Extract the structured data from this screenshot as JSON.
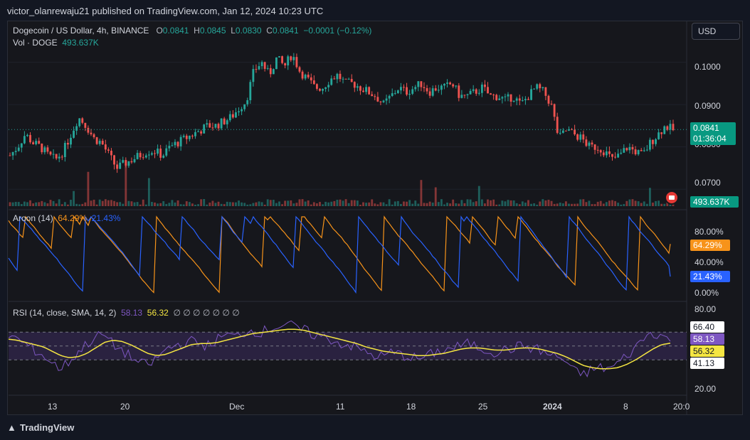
{
  "publisher": "victor_olanrewaju21 published on TradingView.com, Jan 12, 2024 10:23 UTC",
  "footer": "TradingView",
  "currency_button": "USD",
  "legend": {
    "symbol": "Dogecoin / US Dollar, 4h, BINANCE",
    "o_label": "O",
    "o_value": "0.0841",
    "h_label": "H",
    "h_value": "0.0845",
    "l_label": "L",
    "l_value": "0.0830",
    "c_label": "C",
    "c_value": "0.0841",
    "change": "−0.0001 (−0.12%)",
    "vol_label": "Vol · DOGE",
    "vol_value": "493.637K"
  },
  "aroon_legend": {
    "label": "Aroon (14)",
    "up": "64.29%",
    "down": "21.43%"
  },
  "rsi_legend": {
    "label": "RSI (14, close, SMA, 14, 2)",
    "rsi": "58.13",
    "sma": "56.32",
    "rest": "∅ ∅ ∅ ∅ ∅ ∅ ∅"
  },
  "price_axis": [
    "0.1000",
    "0.0900",
    "0.0800",
    "0.0700"
  ],
  "current_price": {
    "price": "0.0841",
    "countdown": "01:36:04",
    "volume": "493.637K"
  },
  "aroon_axis": [
    "80.00%",
    "40.00%",
    "0.00%"
  ],
  "aroon_tags": {
    "up": "64.29%",
    "down": "21.43%"
  },
  "rsi_axis": [
    "80.00",
    "20.00"
  ],
  "rsi_tags": {
    "upper": "66.40",
    "rsi": "58.13",
    "sma": "56.32",
    "lower": "41.13"
  },
  "time_axis": [
    "13",
    "20",
    "Dec",
    "11",
    "18",
    "25",
    "2024",
    "8",
    "20:0"
  ],
  "colors": {
    "up": "#26a69a",
    "down": "#ef5350",
    "aroon_up": "#f7931a",
    "aroon_down": "#2962ff",
    "rsi": "#7e57c2",
    "rsi_sma": "#f5e642",
    "rsi_band": "#2a2240"
  },
  "chart_data": [
    {
      "type": "candlestick",
      "title": "Dogecoin / US Dollar, 4h, BINANCE",
      "ylim": [
        0.066,
        0.108
      ],
      "x_ticks": [
        "13",
        "20",
        "Dec",
        "11",
        "18",
        "25",
        "2024",
        "8"
      ],
      "close_path": [
        0.078,
        0.08,
        0.083,
        0.081,
        0.08,
        0.078,
        0.077,
        0.079,
        0.083,
        0.087,
        0.085,
        0.082,
        0.081,
        0.078,
        0.075,
        0.076,
        0.077,
        0.078,
        0.079,
        0.079,
        0.078,
        0.08,
        0.081,
        0.082,
        0.083,
        0.084,
        0.085,
        0.085,
        0.086,
        0.087,
        0.089,
        0.091,
        0.098,
        0.1,
        0.097,
        0.101,
        0.099,
        0.102,
        0.098,
        0.096,
        0.094,
        0.094,
        0.096,
        0.097,
        0.095,
        0.095,
        0.094,
        0.093,
        0.092,
        0.09,
        0.092,
        0.094,
        0.093,
        0.094,
        0.095,
        0.093,
        0.094,
        0.094,
        0.095,
        0.092,
        0.092,
        0.093,
        0.094,
        0.092,
        0.092,
        0.091,
        0.092,
        0.09,
        0.092,
        0.094,
        0.093,
        0.09,
        0.082,
        0.084,
        0.083,
        0.082,
        0.08,
        0.08,
        0.079,
        0.077,
        0.078,
        0.08,
        0.079,
        0.078,
        0.081,
        0.083,
        0.085,
        0.084
      ],
      "last_close": 0.0841
    },
    {
      "type": "line",
      "title": "Aroon (14)",
      "ylim": [
        0,
        100
      ],
      "series": [
        {
          "name": "Aroon Up",
          "last": 64.29
        },
        {
          "name": "Aroon Down",
          "last": 21.43
        }
      ]
    },
    {
      "type": "line",
      "title": "RSI (14, close, SMA, 14, 2)",
      "ylim": [
        14,
        88
      ],
      "bands": [
        41.13,
        66.4
      ],
      "rsi_path": [
        64,
        60,
        55,
        50,
        45,
        38,
        33,
        40,
        48,
        56,
        62,
        64,
        55,
        50,
        44,
        38,
        36,
        42,
        50,
        54,
        56,
        58,
        56,
        54,
        60,
        64,
        62,
        66,
        68,
        66,
        70,
        72,
        74,
        70,
        68,
        64,
        62,
        60,
        56,
        55,
        52,
        48,
        45,
        44,
        48,
        46,
        44,
        42,
        44,
        48,
        50,
        52,
        54,
        56,
        52,
        50,
        48,
        50,
        52,
        54,
        52,
        50,
        46,
        44,
        40,
        30,
        28,
        32,
        34,
        33,
        38,
        45,
        52,
        62,
        66,
        64,
        58
      ],
      "sma_path": [
        60,
        59,
        57,
        55,
        53,
        49,
        45,
        43,
        44,
        47,
        52,
        57,
        59,
        58,
        55,
        51,
        47,
        45,
        46,
        49,
        52,
        55,
        56,
        56,
        57,
        59,
        61,
        63,
        65,
        66,
        67,
        68,
        69,
        69,
        68,
        66,
        64,
        62,
        60,
        58,
        56,
        53,
        51,
        49,
        48,
        47,
        46,
        45,
        45,
        46,
        47,
        49,
        51,
        52,
        52,
        51,
        50,
        50,
        51,
        52,
        52,
        51,
        49,
        47,
        44,
        40,
        36,
        34,
        33,
        33,
        34,
        37,
        41,
        46,
        51,
        55,
        56.32
      ],
      "last_rsi": 58.13,
      "last_sma": 56.32
    }
  ]
}
